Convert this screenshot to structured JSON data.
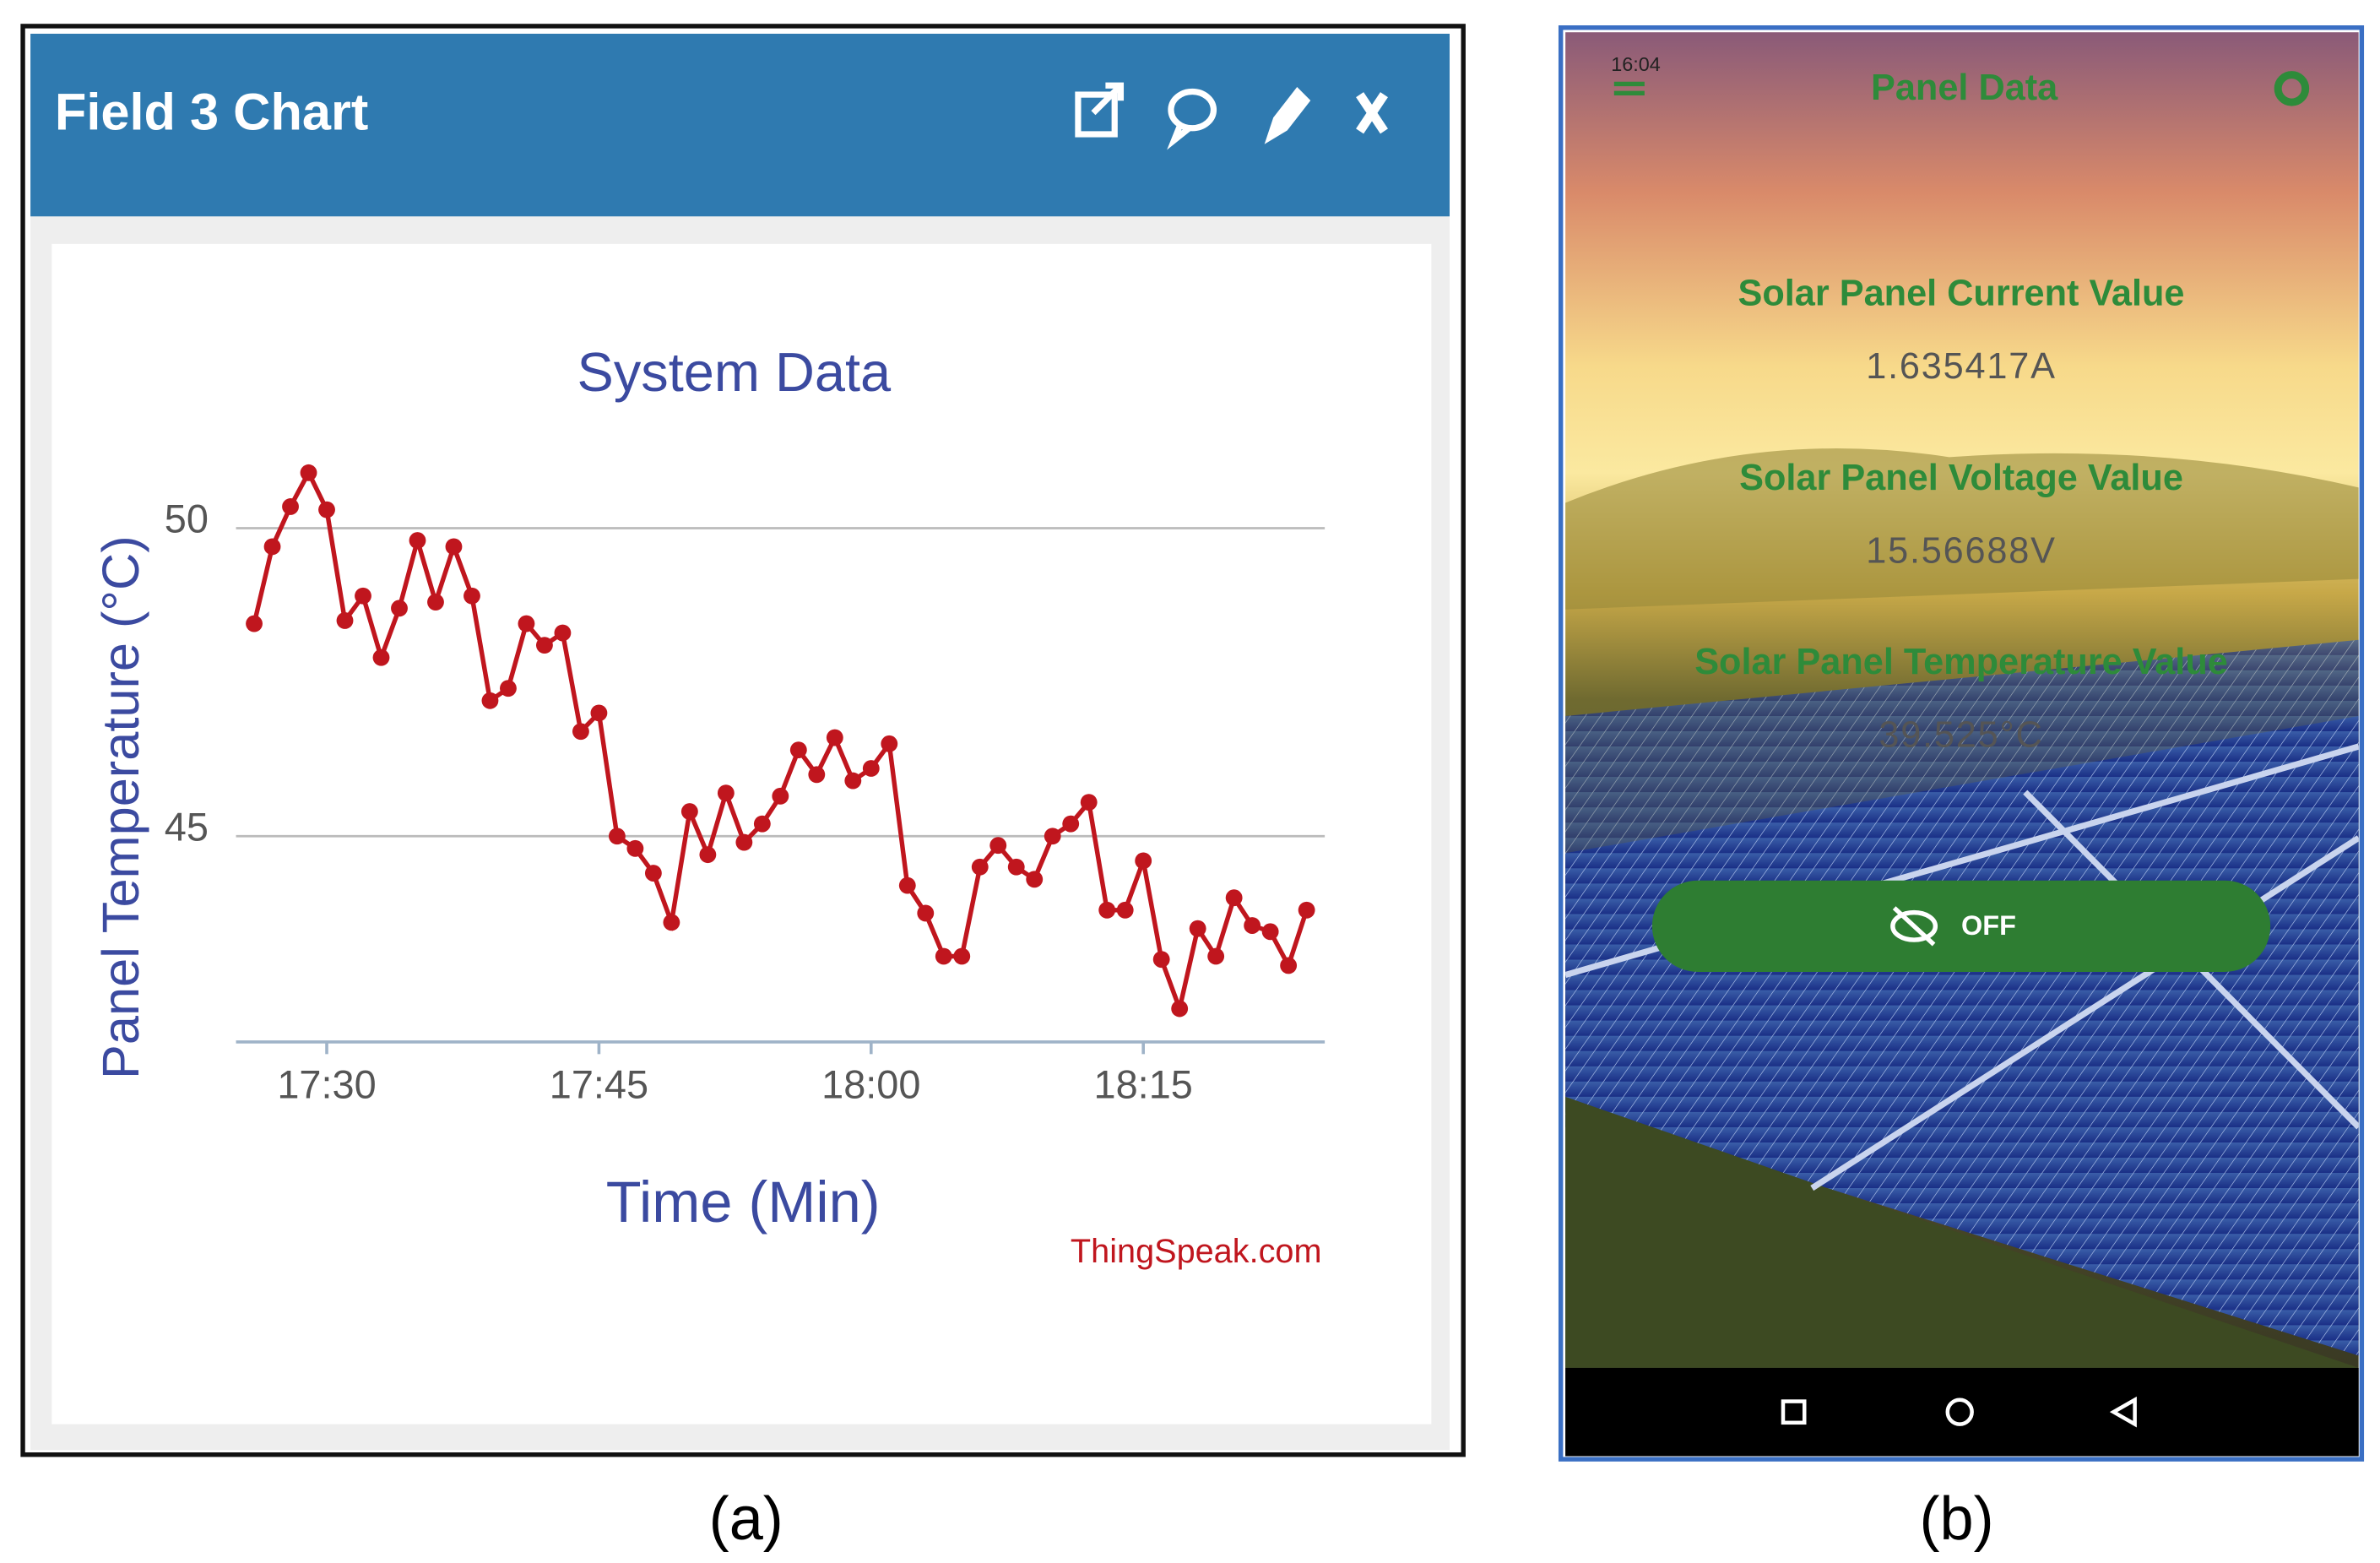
{
  "widget": {
    "title": "Field 3 Chart"
  },
  "chart_data": {
    "type": "line",
    "title": "System Data",
    "x_label": "Time (Min)",
    "y_label": "Panel Temperature  (°C)",
    "credit": "ThingSpeak.com",
    "x": [
      "17:26",
      "17:27",
      "17:28",
      "17:29",
      "17:30",
      "17:31",
      "17:32",
      "17:33",
      "17:34",
      "17:35",
      "17:36",
      "17:37",
      "17:38",
      "17:39",
      "17:40",
      "17:41",
      "17:42",
      "17:43",
      "17:44",
      "17:45",
      "17:46",
      "17:47",
      "17:48",
      "17:49",
      "17:50",
      "17:51",
      "17:52",
      "17:53",
      "17:54",
      "17:55",
      "17:56",
      "17:57",
      "17:58",
      "17:59",
      "18:00",
      "18:01",
      "18:02",
      "18:03",
      "18:04",
      "18:05",
      "18:06",
      "18:07",
      "18:08",
      "18:09",
      "18:10",
      "18:11",
      "18:12",
      "18:13",
      "18:14",
      "18:15",
      "18:16",
      "18:17",
      "18:18",
      "18:19",
      "18:20",
      "18:21",
      "18:22",
      "18:23",
      "18:24"
    ],
    "series": [
      {
        "name": "Panel Temperature",
        "color": "#c0161e",
        "values": [
          48.45,
          49.7,
          50.35,
          50.9,
          50.3,
          48.5,
          48.9,
          47.9,
          48.7,
          49.8,
          48.8,
          49.7,
          48.9,
          47.2,
          47.4,
          48.45,
          48.1,
          48.3,
          46.7,
          47.0,
          45.0,
          44.8,
          44.4,
          43.6,
          45.4,
          44.7,
          45.7,
          44.9,
          45.2,
          45.65,
          46.4,
          46.0,
          46.6,
          45.9,
          46.1,
          46.5,
          44.2,
          43.75,
          43.05,
          43.05,
          44.5,
          44.85,
          44.5,
          44.3,
          45.0,
          45.2,
          45.55,
          43.8,
          43.8,
          44.6,
          43.0,
          42.2,
          43.5,
          43.05,
          44.0,
          43.55,
          43.45,
          42.9,
          43.8
        ]
      }
    ],
    "xlim": [
      "17:25",
      "18:25"
    ],
    "xticks": [
      "17:30",
      "17:45",
      "18:00",
      "18:15"
    ],
    "ylim": [
      41.66,
      51.5
    ],
    "yticks": [
      45,
      50
    ],
    "grid": true
  },
  "app": {
    "status_time": "16:04",
    "title": "Panel Data",
    "readings": [
      {
        "label": "Solar Panel Current Value",
        "value": "1.635417A"
      },
      {
        "label": "Solar Panel Voltage Value",
        "value": "15.56688V"
      },
      {
        "label": "Solar Panel Temperature Value",
        "value": "39.525°C"
      }
    ],
    "button": "OFF"
  },
  "captions": [
    "(a)",
    "(b)"
  ]
}
